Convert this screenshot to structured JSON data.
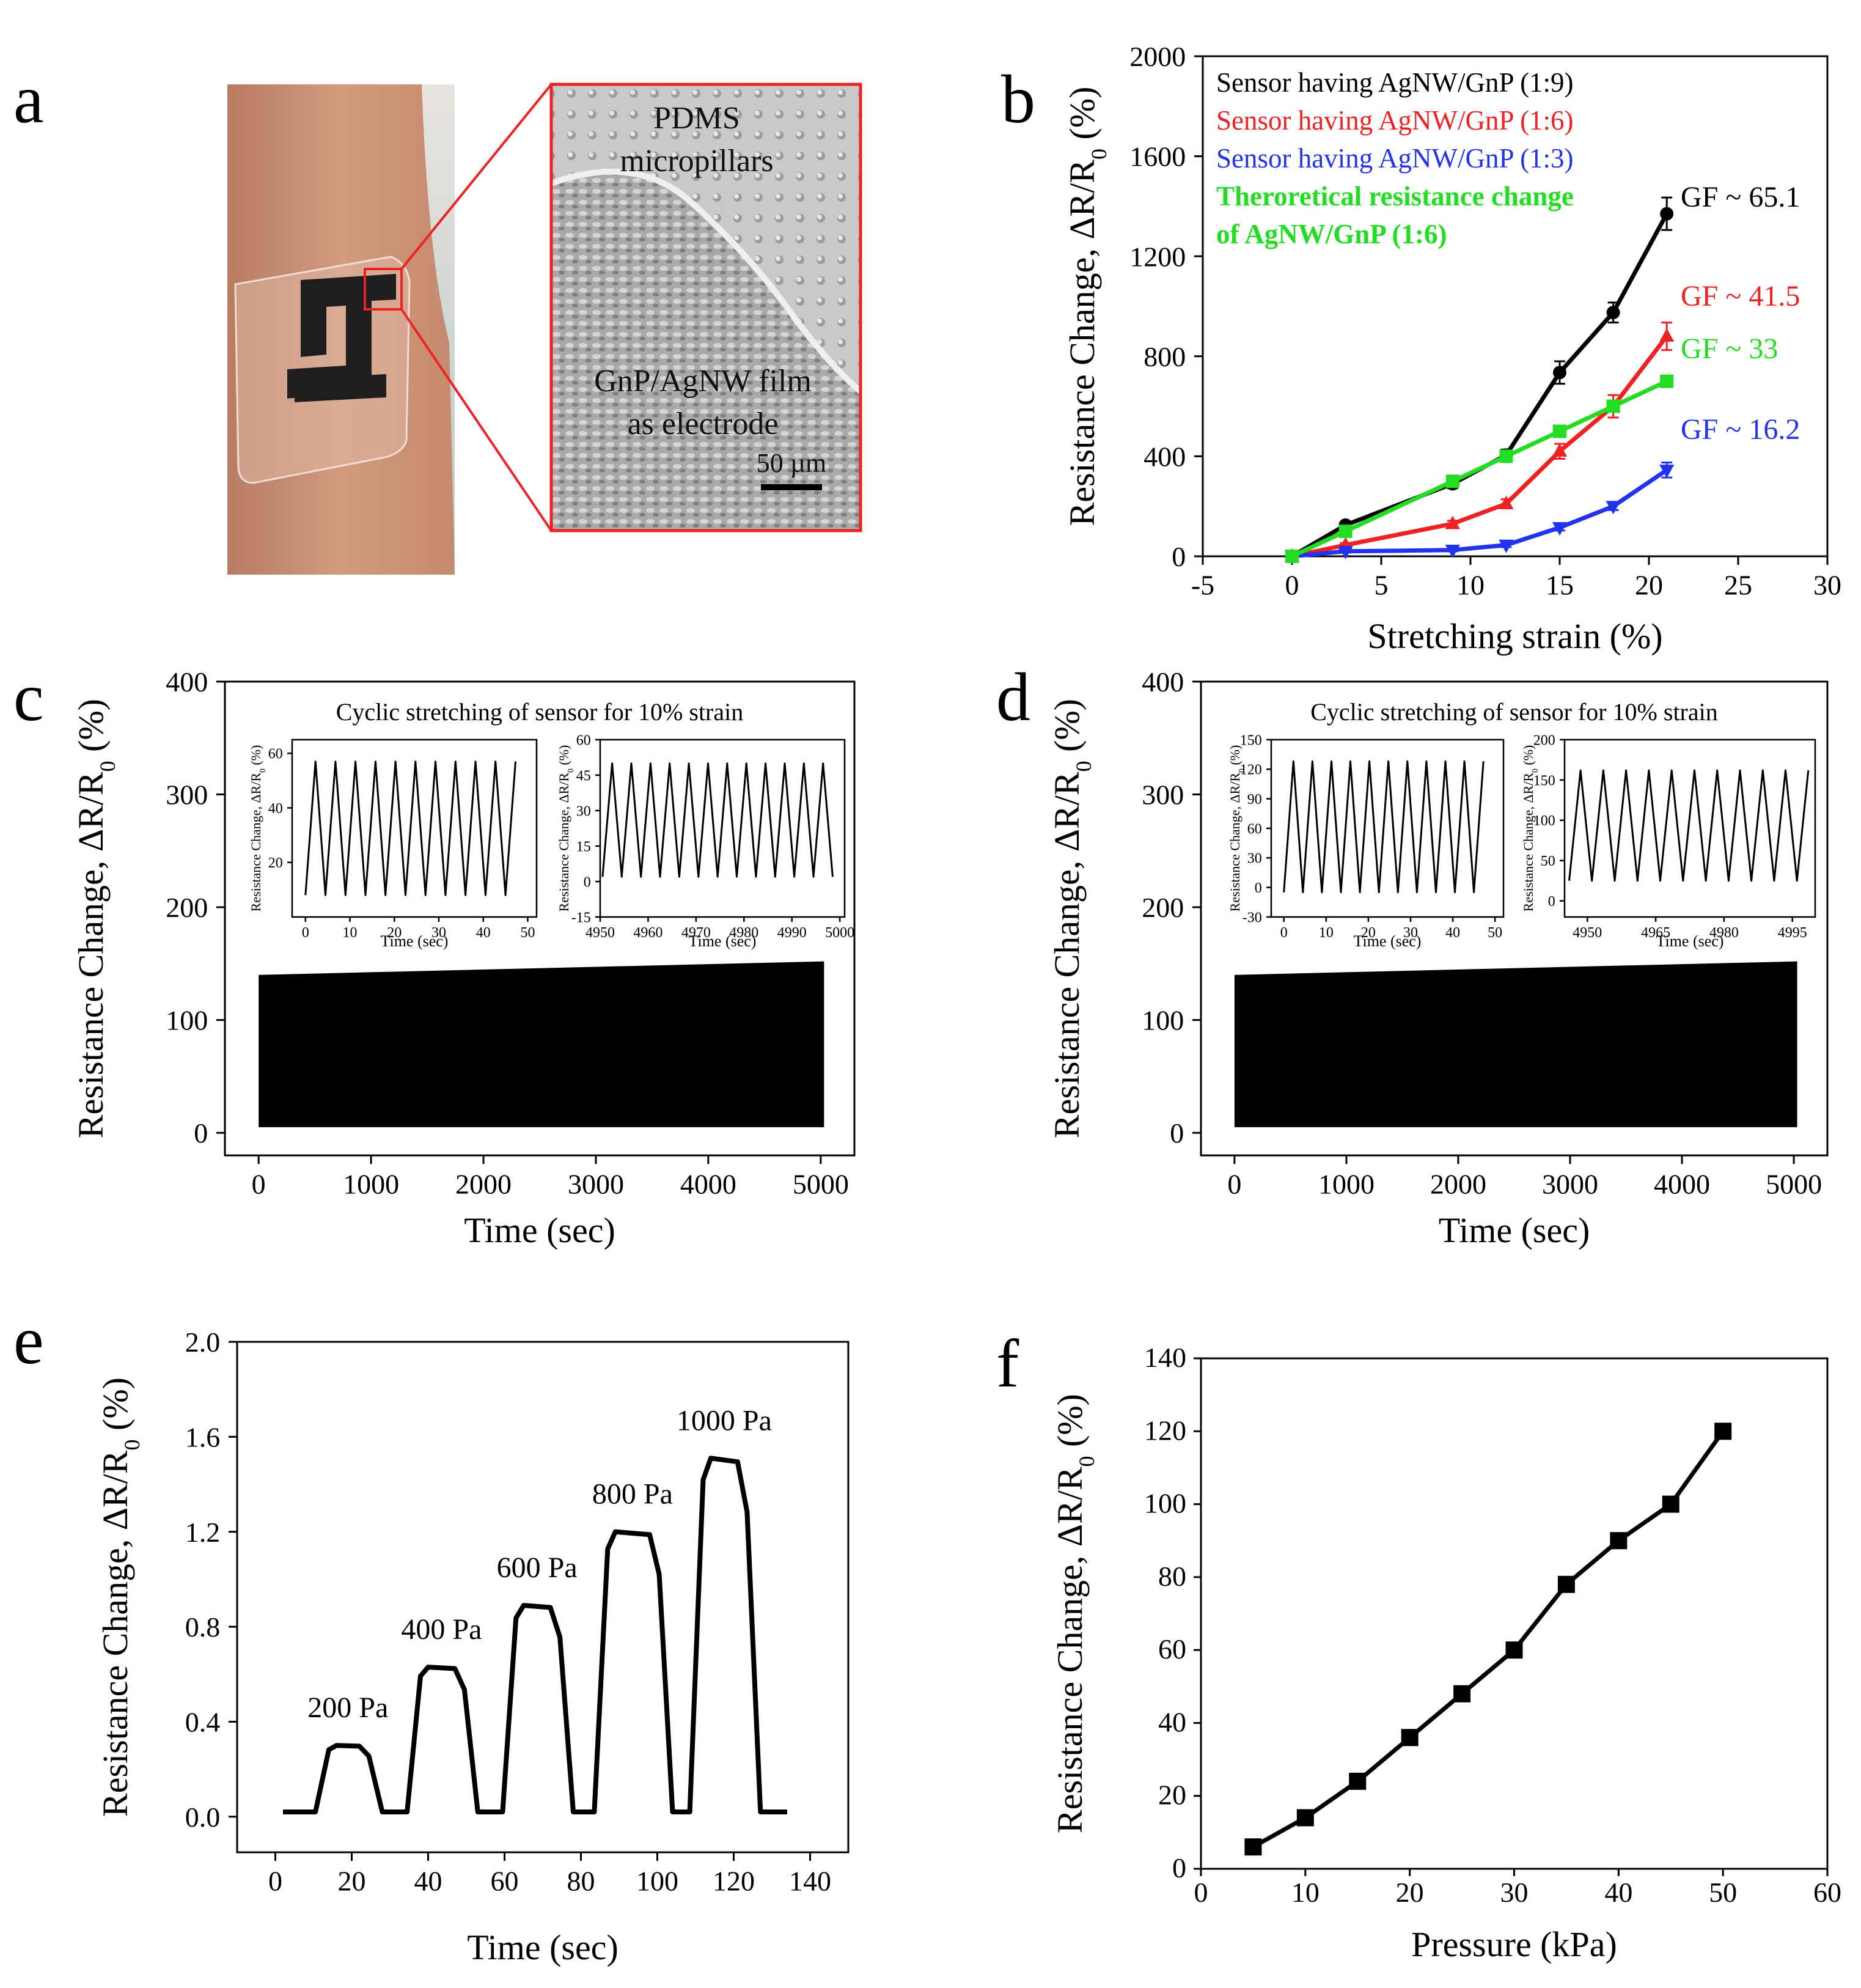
{
  "colors": {
    "black": "#000000",
    "red": "#ee2222",
    "blue": "#2233ee",
    "green": "#22dd22",
    "frame_red": "#ee2222"
  },
  "panel_a": {
    "letter": "a",
    "labels": [
      "PDMS",
      "micropillars",
      "GnP/AgNW film",
      "as electrode"
    ],
    "scale_bar": "50 µm"
  },
  "chart_data": [
    {
      "panel": "b",
      "type": "line",
      "xlabel": "Stretching strain (%)",
      "ylabel": "Resistance Change, ΔR/R0 (%)",
      "xlim": [
        -5,
        30
      ],
      "ylim": [
        0,
        2000
      ],
      "xticks": [
        "-5",
        "0",
        "5",
        "10",
        "15",
        "20",
        "25",
        "30"
      ],
      "yticks": [
        "0",
        "400",
        "800",
        "1200",
        "1600",
        "2000"
      ],
      "legend": [
        "Sensor having AgNW/GnP (1:9)",
        "Sensor having AgNW/GnP (1:6)",
        "Sensor having AgNW/GnP (1:3)",
        "Theroretical resistance change",
        "of AgNW/GnP (1:6)"
      ],
      "series": [
        {
          "name": "Sensor having AgNW/GnP (1:9)",
          "color": "#000000",
          "marker": "circle",
          "x": [
            0,
            3,
            9,
            12,
            15,
            18,
            21
          ],
          "y": [
            0,
            125,
            290,
            405,
            735,
            975,
            1370
          ],
          "err": [
            0,
            12,
            18,
            22,
            45,
            40,
            65
          ],
          "label": "GF ~ 65.1"
        },
        {
          "name": "Sensor having AgNW/GnP (1:6)",
          "color": "#ee2222",
          "marker": "triangle-up",
          "x": [
            0,
            3,
            9,
            12,
            15,
            18,
            21
          ],
          "y": [
            0,
            45,
            130,
            210,
            420,
            600,
            880
          ],
          "err": [
            0,
            8,
            12,
            18,
            30,
            45,
            55
          ],
          "label": "GF ~ 41.5"
        },
        {
          "name": "Sensor having AgNW/GnP (1:3)",
          "color": "#2233ee",
          "marker": "triangle-down",
          "x": [
            0,
            3,
            9,
            12,
            15,
            18,
            21
          ],
          "y": [
            0,
            20,
            25,
            45,
            115,
            200,
            345
          ],
          "err": [
            0,
            5,
            5,
            8,
            12,
            15,
            30
          ],
          "label": "GF ~ 16.2"
        },
        {
          "name": "Theroretical resistance change of AgNW/GnP (1:6)",
          "color": "#22dd22",
          "marker": "square",
          "x": [
            0,
            3,
            9,
            12,
            15,
            18,
            21
          ],
          "y": [
            0,
            100,
            300,
            400,
            500,
            600,
            700
          ],
          "err": [
            0,
            0,
            0,
            0,
            0,
            0,
            0
          ],
          "label": "GF ~ 33"
        }
      ]
    },
    {
      "panel": "c",
      "type": "line",
      "xlabel": "Time (sec)",
      "ylabel": "Resistance Change, ΔR/R0 (%)",
      "xlim": [
        -300,
        5300
      ],
      "ylim": [
        -20,
        400
      ],
      "xticks": [
        "0",
        "1000",
        "2000",
        "3000",
        "4000",
        "5000"
      ],
      "yticks": [
        "0",
        "100",
        "200",
        "300",
        "400"
      ],
      "band": {
        "x_start": 0,
        "x_end": 5030,
        "y_low": 5,
        "y_high_start": 140,
        "y_high_end": 152
      },
      "inset_title": "Cyclic stretching of sensor for 10% strain",
      "insets": [
        {
          "xlabel": "Time (sec)",
          "ylabel": "Resistance Change, ΔR/R0 (%)",
          "xlim": [
            -3,
            52
          ],
          "ylim": [
            0,
            65
          ],
          "xticks": [
            "0",
            "10",
            "20",
            "30",
            "40",
            "50"
          ],
          "yticks": [
            "20",
            "40",
            "60"
          ],
          "period": 4.5,
          "x_start": 0,
          "x_end": 49,
          "y_min": 8,
          "y_max": 57
        },
        {
          "xlabel": "Time (sec)",
          "ylabel": "Resistance Change, ΔR/R0 (%)",
          "xlim": [
            4950,
            5001
          ],
          "ylim": [
            -15,
            60
          ],
          "xticks": [
            "4950",
            "4960",
            "4970",
            "4980",
            "4990",
            "5000"
          ],
          "yticks": [
            "-15",
            "0",
            "15",
            "30",
            "45",
            "60"
          ],
          "period": 4,
          "x_start": 4950.5,
          "x_end": 4999.5,
          "y_min": 2,
          "y_max": 50
        }
      ]
    },
    {
      "panel": "d",
      "type": "line",
      "xlabel": "Time (sec)",
      "ylabel": "Resistance Change, ΔR/R0 (%)",
      "xlim": [
        -300,
        5300
      ],
      "ylim": [
        -20,
        400
      ],
      "xticks": [
        "0",
        "1000",
        "2000",
        "3000",
        "4000",
        "5000"
      ],
      "yticks": [
        "0",
        "100",
        "200",
        "300",
        "400"
      ],
      "band": {
        "x_start": 0,
        "x_end": 5030,
        "y_low": 5,
        "y_high_start": 140,
        "y_high_end": 152
      },
      "inset_title": "Cyclic stretching of sensor for 10% strain",
      "insets": [
        {
          "xlabel": "Time (sec)",
          "ylabel": "Resistance Change, ΔR/R0 (%)",
          "xlim": [
            -3,
            52
          ],
          "ylim": [
            -30,
            150
          ],
          "xticks": [
            "0",
            "10",
            "20",
            "30",
            "40",
            "50"
          ],
          "yticks": [
            "-30",
            "0",
            "30",
            "60",
            "90",
            "120",
            "150"
          ],
          "period": 4.5,
          "x_start": 0,
          "x_end": 49,
          "y_min": -5,
          "y_max": 128
        },
        {
          "xlabel": "Time (sec)",
          "ylabel": "Resistance Change, ΔR/R0 (%)",
          "xlim": [
            4945,
            5000
          ],
          "ylim": [
            -20,
            200
          ],
          "xticks": [
            "4950",
            "4965",
            "4980",
            "4995"
          ],
          "yticks": [
            "0",
            "50",
            "100",
            "150",
            "200"
          ],
          "period": 5,
          "x_start": 4946,
          "x_end": 4999,
          "y_min": 25,
          "y_max": 162
        }
      ]
    },
    {
      "panel": "e",
      "type": "line",
      "xlabel": "Time (sec)",
      "ylabel": "Resistance Change, ΔR/R0 (%)",
      "xlim": [
        -10,
        150
      ],
      "ylim": [
        -0.15,
        2.0
      ],
      "xticks": [
        "0",
        "20",
        "40",
        "60",
        "80",
        "100",
        "120",
        "140"
      ],
      "yticks": [
        "0.0",
        "0.4",
        "0.8",
        "1.2",
        "1.6",
        "2.0"
      ],
      "baseline": 0.02,
      "pulses": [
        {
          "rise": 12,
          "fall": 26,
          "level": 0.3,
          "label": "200 Pa"
        },
        {
          "rise": 36,
          "fall": 51,
          "level": 0.63,
          "label": "400 Pa"
        },
        {
          "rise": 61,
          "fall": 76,
          "level": 0.89,
          "label": "600 Pa"
        },
        {
          "rise": 85,
          "fall": 102,
          "level": 1.2,
          "label": "800 Pa"
        },
        {
          "rise": 110,
          "fall": 125,
          "level": 1.51,
          "label": "1000 Pa"
        }
      ],
      "x_start": 2,
      "x_end": 134
    },
    {
      "panel": "f",
      "type": "line",
      "xlabel": "Pressure (kPa)",
      "ylabel": "Resistance Change, ΔR/R0 (%)",
      "xlim": [
        0,
        60
      ],
      "ylim": [
        0,
        140
      ],
      "xticks": [
        "0",
        "10",
        "20",
        "30",
        "40",
        "50",
        "60"
      ],
      "yticks": [
        "0",
        "20",
        "40",
        "60",
        "80",
        "100",
        "120",
        "140"
      ],
      "x": [
        5,
        10,
        15,
        20,
        25,
        30,
        35,
        40,
        45,
        50
      ],
      "y": [
        6,
        14,
        24,
        36,
        48,
        60,
        78,
        90,
        100,
        120
      ]
    }
  ]
}
